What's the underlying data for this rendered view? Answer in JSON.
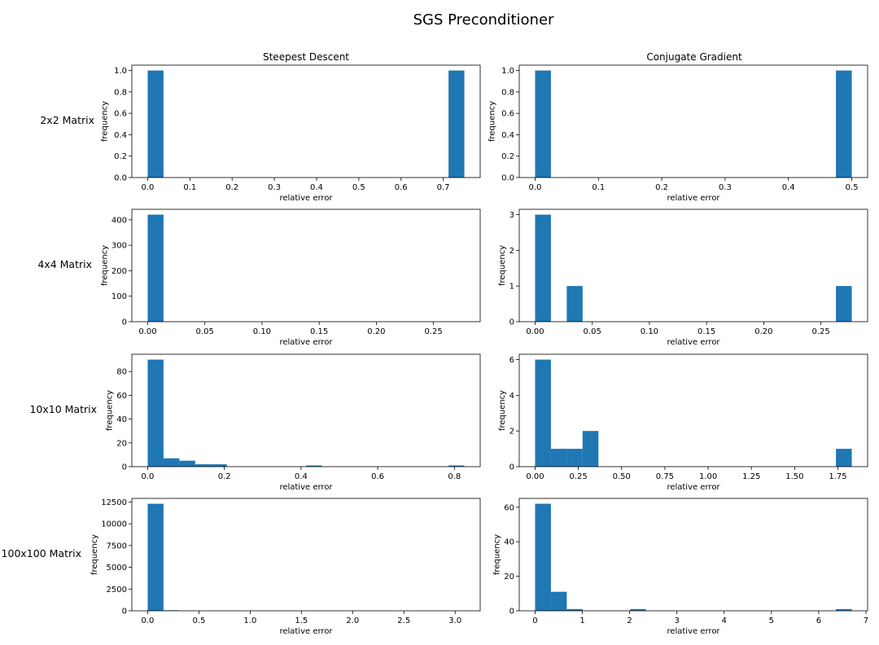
{
  "figure_title": "SGS Preconditioner",
  "column_titles": [
    "Steepest Descent",
    "Conjugate Gradient"
  ],
  "row_labels": [
    "2x2 Matrix",
    "4x4 Matrix",
    "10x10 Matrix",
    "100x100 Matrix"
  ],
  "bar_color": "#1f77b4",
  "chart_data": [
    {
      "type": "bar",
      "row": 0,
      "col": 0,
      "xlabel": "relative error",
      "ylabel": "frequency",
      "bins": {
        "start": 0.0,
        "width": 0.0375
      },
      "values": [
        1,
        0,
        0,
        0,
        0,
        0,
        0,
        0,
        0,
        0,
        0,
        0,
        0,
        0,
        0,
        0,
        0,
        0,
        0,
        1
      ],
      "xlim": [
        -0.0375,
        0.7875
      ],
      "ylim": [
        0,
        1.05
      ],
      "xticks": [
        0.0,
        0.1,
        0.2,
        0.3,
        0.4,
        0.5,
        0.6,
        0.7
      ],
      "xticklabels": [
        "0.0",
        "0.1",
        "0.2",
        "0.3",
        "0.4",
        "0.5",
        "0.6",
        "0.7"
      ],
      "yticks": [
        0.0,
        0.2,
        0.4,
        0.6,
        0.8,
        1.0
      ],
      "yticklabels": [
        "0.0",
        "0.2",
        "0.4",
        "0.6",
        "0.8",
        "1.0"
      ]
    },
    {
      "type": "bar",
      "row": 0,
      "col": 1,
      "xlabel": "relative error",
      "ylabel": "frequency",
      "bins": {
        "start": 0.0,
        "width": 0.025
      },
      "values": [
        1,
        0,
        0,
        0,
        0,
        0,
        0,
        0,
        0,
        0,
        0,
        0,
        0,
        0,
        0,
        0,
        0,
        0,
        0,
        1
      ],
      "xlim": [
        -0.025,
        0.525
      ],
      "ylim": [
        0,
        1.05
      ],
      "xticks": [
        0.0,
        0.1,
        0.2,
        0.3,
        0.4,
        0.5
      ],
      "xticklabels": [
        "0.0",
        "0.1",
        "0.2",
        "0.3",
        "0.4",
        "0.5"
      ],
      "yticks": [
        0.0,
        0.2,
        0.4,
        0.6,
        0.8,
        1.0
      ],
      "yticklabels": [
        "0.0",
        "0.2",
        "0.4",
        "0.6",
        "0.8",
        "1.0"
      ]
    },
    {
      "type": "bar",
      "row": 1,
      "col": 0,
      "xlabel": "relative error",
      "ylabel": "frequency",
      "bins": {
        "start": 0.0,
        "width": 0.01385
      },
      "values": [
        420,
        0,
        0,
        0,
        0,
        0,
        0,
        0,
        0,
        0,
        0,
        0,
        0,
        0,
        0,
        0,
        0,
        0,
        0,
        0
      ],
      "xlim": [
        -0.01385,
        0.29085
      ],
      "ylim": [
        0,
        441
      ],
      "xticks": [
        0.0,
        0.05,
        0.1,
        0.15,
        0.2,
        0.25
      ],
      "xticklabels": [
        "0.00",
        "0.05",
        "0.10",
        "0.15",
        "0.20",
        "0.25"
      ],
      "yticks": [
        0,
        100,
        200,
        300,
        400
      ],
      "yticklabels": [
        "0",
        "100",
        "200",
        "300",
        "400"
      ]
    },
    {
      "type": "bar",
      "row": 1,
      "col": 1,
      "xlabel": "relative error",
      "ylabel": "frequency",
      "bins": {
        "start": 0.0,
        "width": 0.01385
      },
      "values": [
        3,
        0,
        1,
        0,
        0,
        0,
        0,
        0,
        0,
        0,
        0,
        0,
        0,
        0,
        0,
        0,
        0,
        0,
        0,
        1
      ],
      "xlim": [
        -0.01385,
        0.29085
      ],
      "ylim": [
        0,
        3.15
      ],
      "xticks": [
        0.0,
        0.05,
        0.1,
        0.15,
        0.2,
        0.25
      ],
      "xticklabels": [
        "0.00",
        "0.05",
        "0.10",
        "0.15",
        "0.20",
        "0.25"
      ],
      "yticks": [
        0,
        1,
        2,
        3
      ],
      "yticklabels": [
        "0",
        "1",
        "2",
        "3"
      ]
    },
    {
      "type": "bar",
      "row": 2,
      "col": 0,
      "xlabel": "relative error",
      "ylabel": "frequency",
      "bins": {
        "start": 0.0,
        "width": 0.0413
      },
      "values": [
        90,
        7,
        5,
        2,
        2,
        0,
        0,
        0,
        0,
        0,
        1,
        0,
        0,
        0,
        0,
        0,
        0,
        0,
        0,
        1
      ],
      "xlim": [
        -0.0413,
        0.8673
      ],
      "ylim": [
        0,
        94.5
      ],
      "xticks": [
        0.0,
        0.2,
        0.4,
        0.6,
        0.8
      ],
      "xticklabels": [
        "0.0",
        "0.2",
        "0.4",
        "0.6",
        "0.8"
      ],
      "yticks": [
        0,
        20,
        40,
        60,
        80
      ],
      "yticklabels": [
        "0",
        "20",
        "40",
        "60",
        "80"
      ]
    },
    {
      "type": "bar",
      "row": 2,
      "col": 1,
      "xlabel": "relative error",
      "ylabel": "frequency",
      "bins": {
        "start": 0.0,
        "width": 0.0915
      },
      "values": [
        6,
        1,
        1,
        2,
        0,
        0,
        0,
        0,
        0,
        0,
        0,
        0,
        0,
        0,
        0,
        0,
        0,
        0,
        0,
        1
      ],
      "xlim": [
        -0.0915,
        1.9215
      ],
      "ylim": [
        0,
        6.3
      ],
      "xticks": [
        0.0,
        0.25,
        0.5,
        0.75,
        1.0,
        1.25,
        1.5,
        1.75
      ],
      "xticklabels": [
        "0.00",
        "0.25",
        "0.50",
        "0.75",
        "1.00",
        "1.25",
        "1.50",
        "1.75"
      ],
      "yticks": [
        0,
        2,
        4,
        6
      ],
      "yticklabels": [
        "0",
        "2",
        "4",
        "6"
      ]
    },
    {
      "type": "bar",
      "row": 3,
      "col": 0,
      "xlabel": "relative error",
      "ylabel": "frequency",
      "bins": {
        "start": 0.0,
        "width": 0.1545
      },
      "values": [
        12300,
        60,
        0,
        0,
        0,
        0,
        0,
        0,
        0,
        0,
        0,
        0,
        0,
        0,
        0,
        0,
        0,
        0,
        0,
        0
      ],
      "xlim": [
        -0.1545,
        3.2445
      ],
      "ylim": [
        0,
        12915
      ],
      "xticks": [
        0.0,
        0.5,
        1.0,
        1.5,
        2.0,
        2.5,
        3.0
      ],
      "xticklabels": [
        "0.0",
        "0.5",
        "1.0",
        "1.5",
        "2.0",
        "2.5",
        "3.0"
      ],
      "yticks": [
        0,
        2500,
        5000,
        7500,
        10000,
        12500
      ],
      "yticklabels": [
        "0",
        "2500",
        "5000",
        "7500",
        "10000",
        "12500"
      ]
    },
    {
      "type": "bar",
      "row": 3,
      "col": 1,
      "xlabel": "relative error",
      "ylabel": "frequency",
      "bins": {
        "start": 0.0,
        "width": 0.335
      },
      "values": [
        62,
        11,
        1,
        0,
        0,
        0,
        1,
        0,
        0,
        0,
        0,
        0,
        0,
        0,
        0,
        0,
        0,
        0,
        0,
        1
      ],
      "xlim": [
        -0.335,
        7.035
      ],
      "ylim": [
        0,
        65.1
      ],
      "xticks": [
        0,
        1,
        2,
        3,
        4,
        5,
        6,
        7
      ],
      "xticklabels": [
        "0",
        "1",
        "2",
        "3",
        "4",
        "5",
        "6",
        "7"
      ],
      "yticks": [
        0,
        20,
        40,
        60
      ],
      "yticklabels": [
        "0",
        "20",
        "40",
        "60"
      ]
    }
  ]
}
